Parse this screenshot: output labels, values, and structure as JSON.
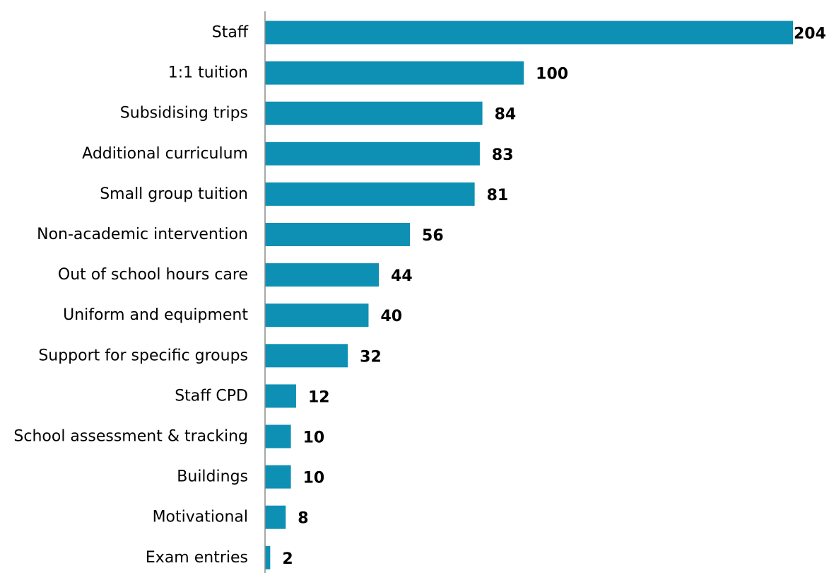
{
  "chart_data": {
    "type": "bar",
    "orientation": "horizontal",
    "title": "",
    "xlabel": "",
    "ylabel": "",
    "categories": [
      "Staff",
      "1:1 tuition",
      "Subsidising trips",
      "Additional curriculum",
      "Small group tuition",
      "Non-academic intervention",
      "Out of school hours care",
      "Uniform and equipment",
      "Support for specific groups",
      "Staff CPD",
      "School assessment & tracking",
      "Buildings",
      "Motivational",
      "Exam entries"
    ],
    "values": [
      204,
      100,
      84,
      83,
      81,
      56,
      44,
      40,
      32,
      12,
      10,
      10,
      8,
      2
    ],
    "xlim": [
      0,
      204
    ],
    "grid": false,
    "legend": "none",
    "data_labels": true,
    "bar_color": "#0E90B4"
  }
}
